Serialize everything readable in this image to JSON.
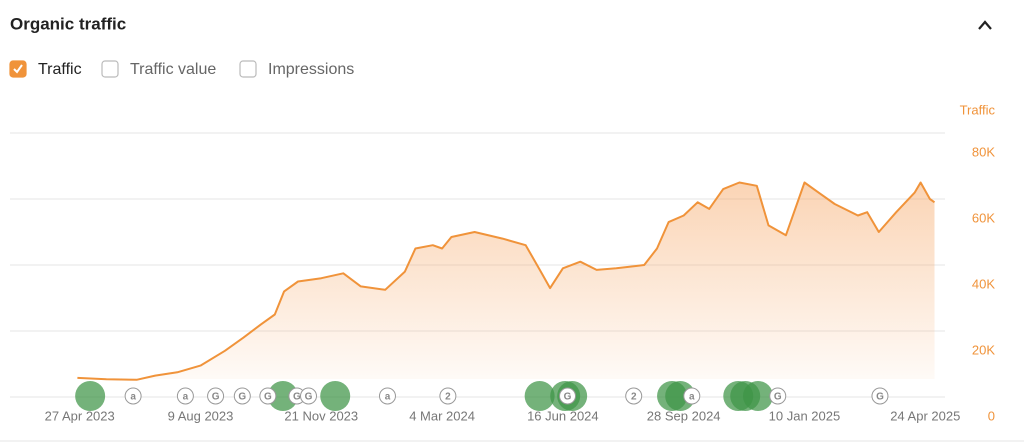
{
  "ui": {
    "title": "Organic traffic",
    "checkboxes": [
      {
        "label": "Traffic",
        "checked": true
      },
      {
        "label": "Traffic value",
        "checked": false
      },
      {
        "label": "Impressions",
        "checked": false
      }
    ]
  },
  "chart_data": {
    "type": "line",
    "y_label": "Traffic",
    "x": [
      "2023-04-25",
      "2023-05-20",
      "2023-06-15",
      "2023-07-01",
      "2023-07-20",
      "2023-08-09",
      "2023-08-30",
      "2023-09-15",
      "2023-09-30",
      "2023-10-12",
      "2023-10-20",
      "2023-11-01",
      "2023-11-21",
      "2023-12-10",
      "2023-12-25",
      "2024-01-15",
      "2024-02-01",
      "2024-02-10",
      "2024-02-25",
      "2024-03-04",
      "2024-03-12",
      "2024-04-01",
      "2024-04-25",
      "2024-05-15",
      "2024-05-28",
      "2024-06-05",
      "2024-06-16",
      "2024-07-01",
      "2024-07-15",
      "2024-08-01",
      "2024-08-25",
      "2024-09-05",
      "2024-09-15",
      "2024-09-28",
      "2024-10-10",
      "2024-10-20",
      "2024-11-01",
      "2024-11-15",
      "2024-11-30",
      "2024-12-10",
      "2024-12-25",
      "2025-01-10",
      "2025-01-22",
      "2025-02-05",
      "2025-02-25",
      "2025-03-05",
      "2025-03-15",
      "2025-03-30",
      "2025-04-15",
      "2025-04-20",
      "2025-04-28",
      "2025-05-02"
    ],
    "series": [
      {
        "name": "Traffic",
        "color": "#f0933a",
        "values": [
          5800,
          5400,
          5200,
          6500,
          7500,
          9500,
          14000,
          18000,
          22000,
          25000,
          32000,
          35000,
          36000,
          37500,
          33500,
          32500,
          38000,
          45000,
          46000,
          45000,
          48500,
          50000,
          48000,
          46000,
          38000,
          33000,
          39000,
          41000,
          38500,
          39000,
          40000,
          45000,
          53000,
          55000,
          59000,
          57000,
          63000,
          65000,
          64000,
          52000,
          49000,
          65000,
          62000,
          58500,
          55000,
          56000,
          50000,
          56000,
          62000,
          65000,
          60000,
          59000
        ]
      }
    ],
    "xlim": [
      "2023-02-26",
      "2025-05-11"
    ],
    "xticks": [
      {
        "value": "2023-04-27",
        "label": "27 Apr 2023"
      },
      {
        "value": "2023-08-09",
        "label": "9 Aug 2023"
      },
      {
        "value": "2023-11-21",
        "label": "21 Nov 2023"
      },
      {
        "value": "2024-03-04",
        "label": "4 Mar 2024"
      },
      {
        "value": "2024-06-16",
        "label": "16 Jun 2024"
      },
      {
        "value": "2024-09-28",
        "label": "28 Sep 2024"
      },
      {
        "value": "2025-01-10",
        "label": "10 Jan 2025"
      },
      {
        "value": "2025-04-24",
        "label": "24 Apr 2025"
      }
    ],
    "ylim": [
      0,
      80000
    ],
    "yticks": [
      0,
      {
        "value": 20000,
        "label": "20K"
      },
      {
        "value": 40000,
        "label": "40K"
      },
      {
        "value": 60000,
        "label": "60K"
      },
      {
        "value": 80000,
        "label": "80K"
      }
    ],
    "grid": true,
    "events": [
      {
        "date": "2023-06-12",
        "label": "a"
      },
      {
        "date": "2023-07-27",
        "label": "a"
      },
      {
        "date": "2023-08-22",
        "label": "G"
      },
      {
        "date": "2023-09-14",
        "label": "G"
      },
      {
        "date": "2023-10-06",
        "label": "G"
      },
      {
        "date": "2023-10-31",
        "label": "G"
      },
      {
        "date": "2023-11-10",
        "label": "G"
      },
      {
        "date": "2024-01-17",
        "label": "a"
      },
      {
        "date": "2024-03-09",
        "label": "2"
      },
      {
        "date": "2024-06-20",
        "label": "G"
      },
      {
        "date": "2024-08-16",
        "label": "2"
      },
      {
        "date": "2024-10-05",
        "label": "a"
      },
      {
        "date": "2024-12-18",
        "label": "G"
      },
      {
        "date": "2025-03-16",
        "label": "G"
      }
    ],
    "updates": [
      "2023-05-06",
      "2023-10-19",
      "2023-12-03",
      "2024-05-27",
      "2024-06-18",
      "2024-06-24",
      "2024-09-18",
      "2024-09-25",
      "2024-11-14",
      "2024-11-20",
      "2024-12-01"
    ]
  }
}
